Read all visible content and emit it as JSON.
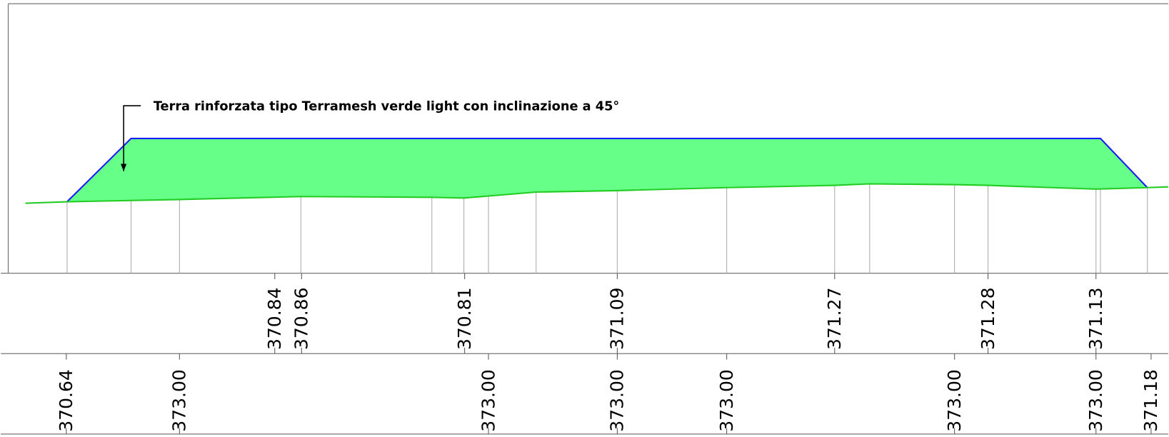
{
  "annotation": "Terra rinforzata tipo Terramesh verde light con inclinazione a 45°",
  "rows": [
    {
      "labels": [
        "370.84",
        "370.86",
        "370.81",
        "371.09",
        "371.27",
        "371.28",
        "371.13"
      ]
    },
    {
      "labels": [
        "370.64",
        "373.00",
        "373.00",
        "373.00",
        "373.00",
        "373.00",
        "373.00",
        "371.18"
      ]
    }
  ]
}
